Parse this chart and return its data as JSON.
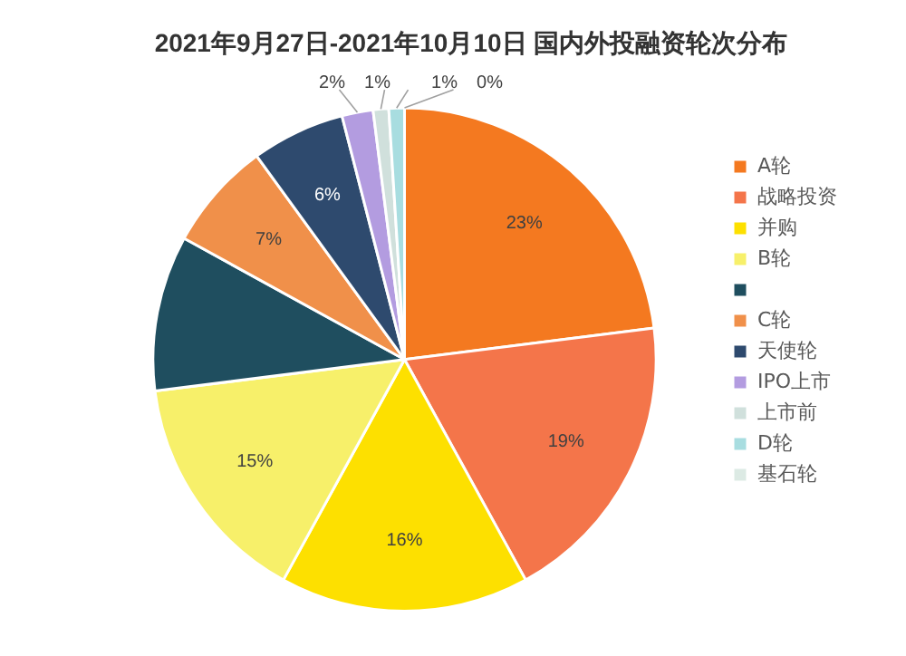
{
  "chart_data": {
    "type": "pie",
    "title": "2021年9月27日-2021年10月10日 国内外投融资轮次分布",
    "categories": [
      "A轮",
      "战略投资",
      "并购",
      "B轮",
      null,
      "C轮",
      "天使轮",
      "IPO上市",
      "上市前",
      "D轮",
      "基石轮"
    ],
    "values": [
      23,
      19,
      16,
      15,
      10,
      7,
      6,
      2,
      1,
      1,
      0
    ],
    "value_labels": [
      "23%",
      "19%",
      "16%",
      "15%",
      null,
      "7%",
      "6%",
      "2%",
      "1%",
      "1%",
      "0%"
    ],
    "colors": [
      "#f47920",
      "#f4754a",
      "#fde000",
      "#f7f06a",
      "#1f4e5f",
      "#f0904a",
      "#2e4a6e",
      "#b39ce0",
      "#d0e0dc",
      "#a8dde0",
      "#dceae4"
    ],
    "legend": "right"
  }
}
